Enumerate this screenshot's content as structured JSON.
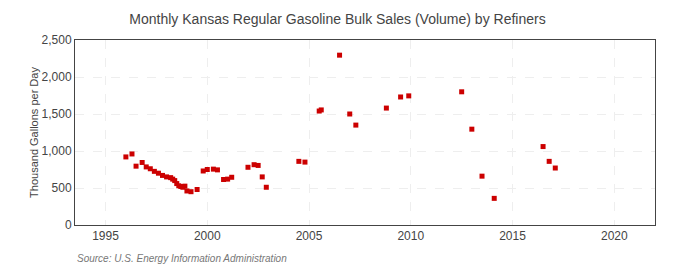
{
  "chart_data": {
    "type": "scatter",
    "title": "Monthly Kansas Regular Gasoline Bulk Sales (Volume) by Refiners",
    "ylabel": "Thousand Gallons per Day",
    "annotations": [
      "Source: U.S. Energy Information Administration"
    ],
    "color": "#cc0000",
    "marker": "square",
    "grid": true,
    "xlim": [
      1993.5,
      2022
    ],
    "ylim": [
      0,
      2500
    ],
    "xticks": [
      1995,
      2000,
      2005,
      2010,
      2015,
      2020
    ],
    "yticks": [
      0,
      500,
      {
        "value": 1000,
        "label": "1,000"
      },
      {
        "value": 1500,
        "label": "1,500"
      },
      {
        "value": 2000,
        "label": "2,000"
      },
      {
        "value": 2500,
        "label": "2,500"
      }
    ],
    "x": [
      1996.0,
      1996.3,
      1996.5,
      1996.8,
      1997.0,
      1997.2,
      1997.4,
      1997.6,
      1997.8,
      1998.0,
      1998.2,
      1998.3,
      1998.4,
      1998.5,
      1998.6,
      1998.7,
      1998.8,
      1998.9,
      1999.0,
      1999.2,
      1999.5,
      1999.8,
      2000.0,
      2000.3,
      2000.5,
      2000.8,
      2001.0,
      2001.2,
      2002.0,
      2002.3,
      2002.5,
      2002.7,
      2002.9,
      2004.5,
      2004.8,
      2005.5,
      2005.6,
      2006.5,
      2007.0,
      2007.3,
      2008.8,
      2009.5,
      2009.9,
      2012.5,
      2013.0,
      2013.5,
      2014.1,
      2016.5,
      2016.8,
      2017.1
    ],
    "values": [
      920,
      960,
      795,
      845,
      785,
      760,
      725,
      700,
      670,
      650,
      640,
      620,
      600,
      560,
      530,
      520,
      510,
      525,
      460,
      450,
      480,
      730,
      750,
      755,
      745,
      615,
      620,
      645,
      780,
      815,
      805,
      650,
      510,
      860,
      850,
      1540,
      1555,
      2295,
      1500,
      1350,
      1580,
      1730,
      1745,
      1800,
      1295,
      660,
      360,
      1060,
      860,
      770
    ]
  }
}
